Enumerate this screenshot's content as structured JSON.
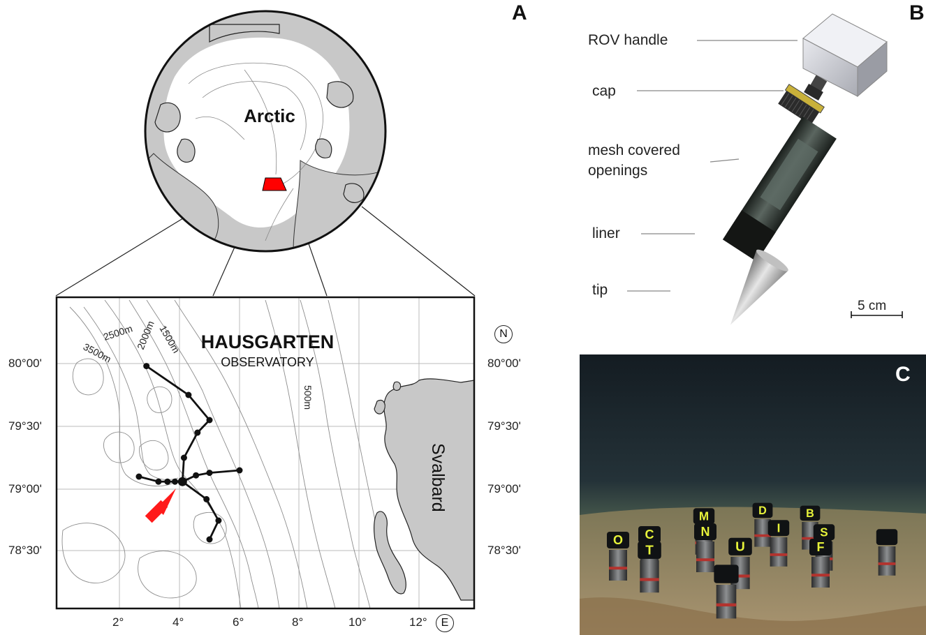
{
  "figure": {
    "panel_a_letter": "A",
    "panel_b_letter": "B",
    "panel_c_letter": "C"
  },
  "globe": {
    "region_label": "Arctic",
    "highlight_color": "#ff0000"
  },
  "map": {
    "title": "HAUSGARTEN",
    "subtitle": "OBSERVATORY",
    "landmass_label": "Svalbard",
    "lat_labels_left": [
      "80°00'",
      "79°30'",
      "79°00'",
      "78°30'"
    ],
    "lat_labels_right": [
      "80°00'",
      "79°30'",
      "79°00'",
      "78°30'"
    ],
    "lon_labels": [
      "2°",
      "4°",
      "6°",
      "8°",
      "10°",
      "12°"
    ],
    "north_symbol": "N",
    "east_symbol": "E",
    "depth_labels": [
      "3500m",
      "2500m",
      "2000m",
      "1500m",
      "500m"
    ],
    "arrow_color": "#ff1a1a",
    "stations": [
      {
        "lon": 2.9,
        "lat": 79.98
      },
      {
        "lon": 4.3,
        "lat": 79.75
      },
      {
        "lon": 5.0,
        "lat": 79.55
      },
      {
        "lon": 4.6,
        "lat": 79.45
      },
      {
        "lon": 4.15,
        "lat": 79.25
      },
      {
        "lon": 4.1,
        "lat": 79.06
      },
      {
        "lon": 3.85,
        "lat": 79.06
      },
      {
        "lon": 3.6,
        "lat": 79.06
      },
      {
        "lon": 3.3,
        "lat": 79.06
      },
      {
        "lon": 2.65,
        "lat": 79.1
      },
      {
        "lon": 4.55,
        "lat": 79.11
      },
      {
        "lon": 5.0,
        "lat": 79.13
      },
      {
        "lon": 6.0,
        "lat": 79.15
      },
      {
        "lon": 4.9,
        "lat": 78.92
      },
      {
        "lon": 5.3,
        "lat": 78.75
      },
      {
        "lon": 5.0,
        "lat": 78.6
      }
    ]
  },
  "instrument": {
    "labels": [
      "ROV handle",
      "cap",
      "mesh covered openings",
      "liner",
      "tip"
    ],
    "mesh_line1": "mesh covered",
    "mesh_line2": "openings",
    "scale_bar": "5 cm"
  },
  "photo": {
    "marker_letters": [
      "O",
      "C",
      "T",
      "M",
      "N",
      "D",
      "U",
      "I",
      "B",
      "S",
      "F"
    ]
  }
}
